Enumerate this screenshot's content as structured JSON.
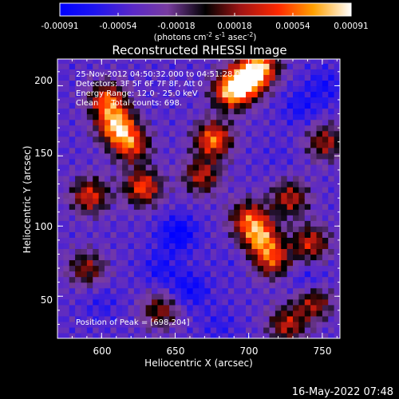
{
  "chart_data": {
    "type": "heatmap",
    "title": "Reconstructed RHESSI Image",
    "xlabel": "Heliocentric X (arcsec)",
    "ylabel": "Heliocentric Y (arcsec)",
    "xlim": [
      570,
      762
    ],
    "ylim": [
      20,
      219
    ],
    "xticks": [
      600,
      650,
      700,
      750
    ],
    "yticks": [
      50,
      100,
      150,
      200
    ],
    "colorbar": {
      "ticks": [
        "-0.00091",
        "-0.00054",
        "-0.00018",
        "0.00018",
        "0.00054",
        "0.00091"
      ],
      "range": [
        -0.00091,
        0.00091
      ],
      "unit_prefix": "(photons cm",
      "unit_exp1": "-2",
      "unit_mid": " s",
      "unit_exp2": "-1",
      "unit_mid2": " asec",
      "unit_exp3": "-2",
      "unit_suffix": ")"
    },
    "annotations": [
      "25-Nov-2012 04:50:32.000 to 04:51:28.000",
      "Detectors: 3F 5F 6F 7F 8F, Att 0",
      "Energy Range: 12.0 - 25.0 keV",
      "Clean     Total counts: 698."
    ],
    "peak_label": "Position of Peak = [698,204]",
    "peak": [
      698,
      204
    ],
    "total_counts": 698,
    "bright_regions": [
      {
        "x": 610,
        "y": 172,
        "value": 0.0009
      },
      {
        "x": 604,
        "y": 190,
        "value": 0.0007
      },
      {
        "x": 592,
        "y": 122,
        "value": 0.0006
      },
      {
        "x": 628,
        "y": 128,
        "value": 0.0007
      },
      {
        "x": 620,
        "y": 158,
        "value": 0.00065
      },
      {
        "x": 676,
        "y": 162,
        "value": 0.0008
      },
      {
        "x": 688,
        "y": 196,
        "value": 0.00085
      },
      {
        "x": 698,
        "y": 204,
        "value": 0.00091
      },
      {
        "x": 708,
        "y": 214,
        "value": 0.0008
      },
      {
        "x": 668,
        "y": 136,
        "value": 0.0005
      },
      {
        "x": 708,
        "y": 92,
        "value": 0.00075
      },
      {
        "x": 700,
        "y": 106,
        "value": 0.0006
      },
      {
        "x": 716,
        "y": 76,
        "value": 0.0006
      },
      {
        "x": 728,
        "y": 120,
        "value": 0.0005
      },
      {
        "x": 742,
        "y": 88,
        "value": 0.00055
      },
      {
        "x": 744,
        "y": 46,
        "value": 0.0005
      },
      {
        "x": 752,
        "y": 160,
        "value": 0.00045
      },
      {
        "x": 590,
        "y": 70,
        "value": 0.0004
      },
      {
        "x": 640,
        "y": 40,
        "value": 0.0004
      },
      {
        "x": 726,
        "y": 30,
        "value": 0.0005
      }
    ],
    "dim_regions": [
      {
        "x": 652,
        "y": 95,
        "value": -0.0007
      },
      {
        "x": 640,
        "y": 70,
        "value": -0.0005
      },
      {
        "x": 660,
        "y": 55,
        "value": -0.0006
      },
      {
        "x": 600,
        "y": 45,
        "value": -0.0004
      },
      {
        "x": 735,
        "y": 185,
        "value": -0.0005
      },
      {
        "x": 752,
        "y": 200,
        "value": -0.0005
      },
      {
        "x": 740,
        "y": 60,
        "value": -0.0005
      },
      {
        "x": 720,
        "y": 150,
        "value": -0.0003
      },
      {
        "x": 680,
        "y": 30,
        "value": -0.0004
      },
      {
        "x": 690,
        "y": 75,
        "value": -0.0003
      }
    ]
  },
  "timestamp": "16-May-2022 07:48"
}
